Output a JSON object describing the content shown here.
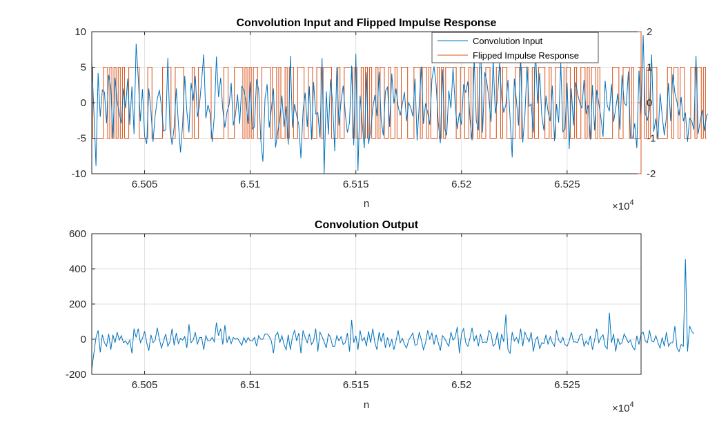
{
  "chart_data": [
    {
      "type": "line",
      "title": "Convolution Input and Flipped Impulse Response",
      "xlabel": "n",
      "x_exponent_label": "×10",
      "x_exponent": "4",
      "xlim": [
        65025,
        65285
      ],
      "x_ticks": [
        65050,
        65100,
        65150,
        65200,
        65250
      ],
      "x_tick_labels": [
        "6.505",
        "6.51",
        "6.515",
        "6.52",
        "6.525"
      ],
      "grid": true,
      "legend": {
        "placement": "top-right",
        "entries": [
          "Convolution Input",
          "Flipped Impulse Response"
        ]
      },
      "axes": {
        "left": {
          "ylim": [
            -10,
            10
          ],
          "ticks": [
            10,
            5,
            0,
            -5,
            -10
          ],
          "tick_labels": [
            "10",
            "5",
            "0",
            "-5",
            "-10"
          ]
        },
        "right": {
          "ylim": [
            -2,
            2
          ],
          "ticks": [
            2,
            1,
            0,
            -1,
            -2
          ],
          "tick_labels": [
            "2",
            "1",
            "0",
            "-1",
            "-2"
          ],
          "color": "#d95319"
        }
      },
      "series": [
        {
          "name": "Convolution Input",
          "color": "#0072bd",
          "axis": "left",
          "x_start": 65025,
          "x_step": 1,
          "values": [
            5.9,
            -1.2,
            -8.9,
            4.2,
            -2.0,
            1.8,
            1.5,
            -2.9,
            3.9,
            2.2,
            -5.0,
            3.5,
            0.2,
            -1.5,
            -2.9,
            2.0,
            -0.8,
            3.4,
            -3.1,
            2.3,
            -4.4,
            8.3,
            3.5,
            -2.6,
            1.9,
            -4.7,
            -5.8,
            2.0,
            -1.2,
            -5.5,
            -1.8,
            0.5,
            1.8,
            -0.6,
            -4.0,
            -3.8,
            6.3,
            -3.8,
            -5.9,
            -3.4,
            2.0,
            -2.9,
            -7.0,
            -3.0,
            3.8,
            -1.2,
            -4.2,
            2.8,
            0.3,
            3.8,
            -2.0,
            -0.3,
            3.2,
            6.8,
            -2.2,
            -0.3,
            -1.5,
            -5.5,
            -1.9,
            6.5,
            0.8,
            3.5,
            -0.9,
            -3.5,
            -1.3,
            -0.3,
            2.8,
            -3.2,
            -1.7,
            1.2,
            -3.0,
            2.3,
            1.8,
            0.2,
            -3.0,
            2.9,
            -3.7,
            -3.4,
            3.3,
            1.8,
            -5.2,
            -8.3,
            0.6,
            2.6,
            -3.5,
            -0.9,
            2.0,
            -6.3,
            -4.2,
            -2.3,
            1.0,
            -3.4,
            -0.5,
            -5.9,
            6.6,
            -3.5,
            -0.2,
            -1.8,
            -3.1,
            -7.8,
            -1.2,
            1.4,
            -3.4,
            2.3,
            -5.2,
            2.9,
            -1.6,
            -1.4,
            -4.9,
            6.3,
            -10.0,
            1.6,
            -4.5,
            3.3,
            0.0,
            -6.8,
            5.0,
            -3.2,
            0.2,
            2.4,
            -1.5,
            -4.2,
            -2.8,
            5.2,
            -6.0,
            6.9,
            -9.6,
            1.0,
            -2.9,
            -6.4,
            4.3,
            -5.8,
            -4.0,
            -0.8,
            1.1,
            -1.9,
            4.3,
            -2.5,
            -4.6,
            1.6,
            2.2,
            -3.4,
            4.1,
            -0.1,
            2.0,
            -0.5,
            -1.8,
            -0.2,
            1.5,
            -2.6,
            0.0,
            -0.7,
            -1.9,
            3.4,
            -5.3,
            -0.3,
            5.1,
            -3.0,
            -0.1,
            -1.4,
            -3.1,
            3.3,
            5.1,
            2.5,
            -2.8,
            -5.7,
            4.7,
            -3.6,
            -4.6,
            1.7,
            -0.8,
            4.9,
            -0.2,
            -3.7,
            -1.4,
            -3.1,
            2.6,
            1.4,
            3.0,
            -2.2,
            -5.3,
            6.4,
            -2.5,
            -3.9,
            9.5,
            -4.2,
            4.3,
            2.9,
            0.5,
            -2.7,
            6.1,
            -1.5,
            0.5,
            5.6,
            0.8,
            -1.4,
            -0.3,
            3.2,
            -2.2,
            -7.7,
            3.4,
            0.3,
            -3.2,
            6.9,
            -5.6,
            -1.9,
            5.1,
            -0.5,
            -0.2,
            -4.2,
            7.9,
            -0.1,
            4.2,
            -1.8,
            -3.9,
            1.0,
            -1.3,
            -2.6,
            2.4,
            -5.4,
            -0.2,
            -2.8,
            5.6,
            -4.1,
            -3.7,
            2.8,
            -6.5,
            2.0,
            -3.2,
            2.9,
            1.2,
            0.0,
            -0.8,
            3.2,
            -1.6,
            -0.3,
            -5.2,
            2.5,
            -3.9,
            1.8,
            -0.1,
            -2.1,
            -4.8,
            3.1,
            -0.4,
            -1.2,
            2.6,
            -2.7,
            -0.8,
            1.3,
            -3.8,
            3.9,
            0.0,
            -0.4,
            4.4,
            -5.0,
            -5.0,
            -2.9,
            -6.4,
            4.5,
            -2.0,
            9.5,
            -1.5,
            -2.5,
            -0.9,
            6.8,
            -4.1,
            -2.2,
            -5.2,
            1.3,
            -1.8,
            -4.6,
            -2.0,
            2.8,
            -2.6,
            4.0,
            1.4,
            0.1,
            -1.8,
            0.8,
            -2.6,
            -1.4,
            -5.5,
            -2.2,
            -2.6,
            -3.8,
            6.6,
            -4.4,
            -2.6,
            -1.0,
            -4.0,
            -1.8,
            -1.5
          ]
        },
        {
          "name": "Flipped Impulse Response",
          "color": "#d95319",
          "axis": "right",
          "x_start": 65025,
          "x_step": 1,
          "values": [
            1,
            -1,
            -1,
            -1,
            -1,
            -1,
            1,
            1,
            -1,
            1,
            -1,
            1,
            -1,
            1,
            -1,
            1,
            -1,
            -1,
            1,
            1,
            1,
            1,
            1,
            -1,
            -1,
            -1,
            -1,
            1,
            1,
            -1,
            -1,
            -1,
            -1,
            -1,
            1,
            1,
            1,
            1,
            -1,
            -1,
            1,
            1,
            1,
            1,
            -1,
            -1,
            -1,
            -1,
            1,
            -1,
            -1,
            1,
            1,
            1,
            1,
            1,
            1,
            -1,
            -1,
            -1,
            -1,
            -1,
            -1,
            1,
            1,
            -1,
            -1,
            -1,
            1,
            1,
            1,
            1,
            -1,
            1,
            -1,
            1,
            -1,
            1,
            1,
            -1,
            -1,
            1,
            1,
            1,
            1,
            -1,
            1,
            1,
            -1,
            1,
            -1,
            -1,
            1,
            -1,
            1,
            1,
            -1,
            -1,
            1,
            1,
            1,
            -1,
            -1,
            1,
            1,
            -1,
            -1,
            1,
            1,
            -1,
            1,
            1,
            1,
            1,
            -1,
            -1,
            -1,
            1,
            -1,
            -1,
            1,
            1,
            1,
            1,
            -1,
            1,
            -1,
            -1,
            1,
            -1,
            1,
            -1,
            1,
            -1,
            -1,
            1,
            -1,
            1,
            1,
            -1,
            -1,
            1,
            -1,
            -1,
            1,
            -1,
            -1,
            1,
            1,
            1,
            -1,
            -1,
            -1,
            1,
            1,
            1,
            -1,
            1,
            1,
            -1,
            1,
            -1,
            -1,
            -1,
            1,
            -1,
            1,
            -1,
            1,
            1,
            1,
            1,
            1,
            -1,
            -1,
            1,
            1,
            -1,
            -1,
            1,
            -1,
            1,
            1,
            -1,
            1,
            -1,
            -1,
            1,
            1,
            -1,
            -1,
            -1,
            1,
            1,
            -1,
            1,
            1,
            -1,
            -1,
            -1,
            -1,
            1,
            1,
            -1,
            1,
            1,
            1,
            -1,
            -1,
            1,
            -1,
            -1,
            1,
            1,
            1,
            -1,
            -1,
            1,
            -1,
            -1,
            1,
            1,
            1,
            1,
            -1,
            1,
            1,
            -1,
            -1,
            1,
            -1,
            -1,
            1,
            1,
            -1,
            1,
            -1,
            1,
            1,
            -1,
            1,
            -1,
            -1,
            -1,
            -1,
            -1,
            -1,
            1,
            1,
            1,
            -1,
            -1,
            1,
            1,
            1,
            -1,
            1,
            -1,
            -1,
            -1,
            1,
            1,
            -1,
            1,
            -1,
            1,
            1,
            1,
            -1,
            -1,
            -1,
            -1,
            -1,
            1,
            1,
            -1,
            1,
            1,
            -1,
            1,
            1,
            -1,
            -1,
            -1,
            1,
            1,
            -1,
            1,
            1,
            -1,
            1,
            -1
          ]
        }
      ]
    },
    {
      "type": "line",
      "title": "Convolution Output",
      "xlabel": "n",
      "x_exponent_label": "×10",
      "x_exponent": "4",
      "xlim": [
        65025,
        65285
      ],
      "x_ticks": [
        65050,
        65100,
        65150,
        65200,
        65250
      ],
      "x_tick_labels": [
        "6.505",
        "6.51",
        "6.515",
        "6.52",
        "6.525"
      ],
      "ylim": [
        -200,
        600
      ],
      "y_ticks": [
        600,
        400,
        200,
        0,
        -200
      ],
      "y_tick_labels": [
        "600",
        "400",
        "200",
        "0",
        "-200"
      ],
      "grid": true,
      "series": [
        {
          "color": "#0072bd",
          "x_start": 65025,
          "x_step": 1,
          "values": [
            -170,
            -80,
            10,
            50,
            -75,
            25,
            -20,
            -40,
            30,
            -60,
            25,
            -20,
            40,
            -5,
            20,
            -20,
            -10,
            -30,
            -5,
            -80,
            60,
            10,
            60,
            -20,
            5,
            45,
            -20,
            -65,
            25,
            -20,
            -5,
            65,
            0,
            -50,
            -10,
            30,
            -40,
            -15,
            60,
            -35,
            35,
            -25,
            5,
            -5,
            15,
            -50,
            85,
            -20,
            -5,
            40,
            -30,
            10,
            10,
            -60,
            20,
            -10,
            -10,
            10,
            -15,
            95,
            20,
            60,
            -30,
            80,
            -20,
            15,
            -25,
            10,
            0,
            5,
            -15,
            -35,
            10,
            -20,
            10,
            -10,
            -10,
            10,
            -40,
            20,
            0,
            0,
            30,
            30,
            15,
            -10,
            -80,
            20,
            40,
            -20,
            20,
            -30,
            -60,
            25,
            -60,
            15,
            50,
            -10,
            35,
            -80,
            50,
            10,
            -20,
            30,
            -30,
            -10,
            60,
            -70,
            40,
            15,
            -15,
            -50,
            30,
            10,
            -40,
            -40,
            20,
            -10,
            15,
            -30,
            -20,
            35,
            -70,
            110,
            -20,
            20,
            -60,
            50,
            -10,
            10,
            -40,
            45,
            -20,
            60,
            -20,
            -60,
            40,
            -15,
            35,
            -50,
            10,
            -40,
            0,
            -60,
            -10,
            50,
            -20,
            5,
            -30,
            -50,
            -5,
            15,
            35,
            -35,
            -30,
            40,
            -5,
            -60,
            -20,
            50,
            0,
            35,
            -30,
            25,
            -20,
            -65,
            20,
            5,
            -20,
            -40,
            40,
            -5,
            10,
            70,
            -80,
            30,
            60,
            -20,
            -40,
            5,
            65,
            -10,
            20,
            -40,
            30,
            -20,
            -15,
            -20,
            50,
            30,
            -40,
            -25,
            40,
            -60,
            30,
            -15,
            140,
            -60,
            -80,
            40,
            -10,
            10,
            -20,
            60,
            -40,
            40,
            10,
            -15,
            40,
            -70,
            -5,
            15,
            -55,
            -20,
            -25,
            25,
            -30,
            15,
            -20,
            -40,
            50,
            -5,
            -20,
            10,
            -30,
            -40,
            -10,
            40,
            -15,
            -15,
            -20,
            20,
            30,
            -40,
            -10,
            -30,
            20,
            -60,
            -5,
            60,
            -20,
            10,
            25,
            -40,
            -55,
            150,
            -20,
            30,
            -70,
            5,
            -30,
            -20,
            30,
            5,
            -20,
            -5,
            -45,
            -60,
            20,
            -30,
            30,
            40,
            -10,
            -20,
            50,
            -10,
            -15,
            20,
            -20,
            -50,
            10,
            -40,
            40,
            -40,
            -20,
            -20,
            75,
            -50,
            -70,
            -30,
            -40,
            455,
            -70,
            75,
            45,
            30
          ]
        }
      ]
    }
  ]
}
